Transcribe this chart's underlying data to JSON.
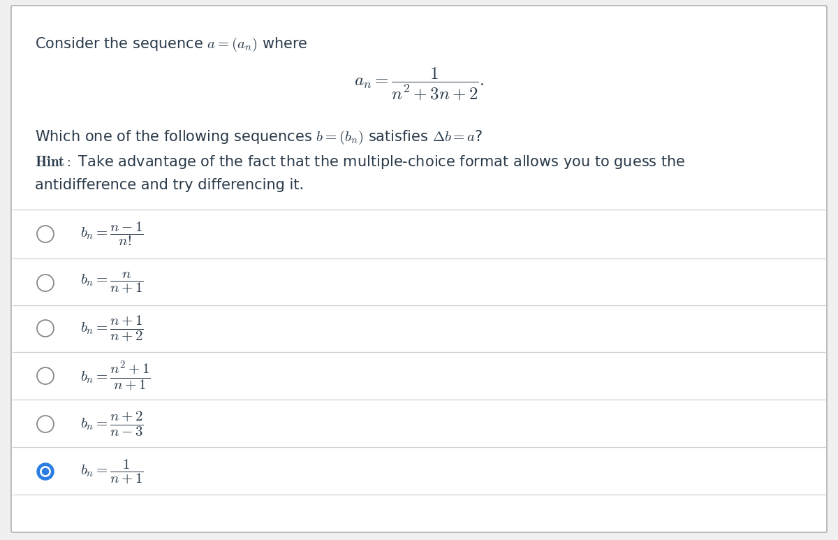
{
  "background_color": "#f0f0f0",
  "panel_color": "#ffffff",
  "border_color": "#b0b0b0",
  "title_text": "Consider the sequence $a = (a_n)$ where",
  "formula_an": "$a_n = \\dfrac{1}{n^2 + 3n + 2}.$",
  "question_line1": "Which one of the following sequences $b = (b_n)$ satisfies $\\Delta b = a$?",
  "hint_bold": "Hint:",
  "hint_rest": " Take advantage of the fact that the multiple-choice format allows you to guess the",
  "hint_line2": "antidifference and try differencing it.",
  "options": [
    {
      "label": "$b_n = \\dfrac{n-1}{n!}$",
      "selected": false
    },
    {
      "label": "$b_n = \\dfrac{n}{n+1}$",
      "selected": false
    },
    {
      "label": "$b_n = \\dfrac{n+1}{n+2}$",
      "selected": false
    },
    {
      "label": "$b_n = \\dfrac{n^2+1}{n+1}$",
      "selected": false
    },
    {
      "label": "$b_n = \\dfrac{n+2}{n-3}$",
      "selected": false
    },
    {
      "label": "$b_n = \\dfrac{1}{n+1}$",
      "selected": true
    }
  ],
  "divider_color": "#d0d0d0",
  "text_color": "#2a3a4a",
  "circle_edge_color": "#888888",
  "circle_fill_color": "#2a7de1",
  "title_fontsize": 15,
  "formula_fontsize": 16,
  "question_fontsize": 15,
  "hint_fontsize": 15,
  "option_fontsize": 15
}
